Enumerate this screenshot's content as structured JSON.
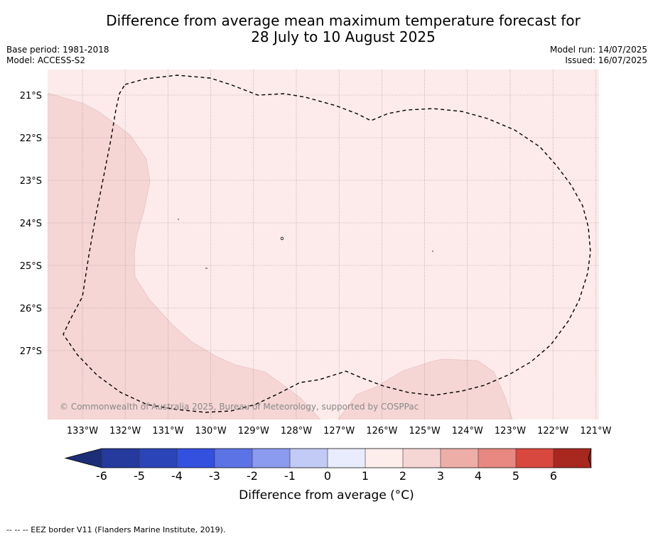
{
  "title": {
    "line1": "Difference from average mean maximum temperature forecast for",
    "line2": "28 July to 10 August 2025"
  },
  "meta": {
    "base_period": "Base period: 1981-2018",
    "model": "Model: ACCESS-S2",
    "model_run": "Model run: 14/07/2025",
    "issued": "Issued: 16/07/2025"
  },
  "map": {
    "lat_labels": [
      "21°S",
      "22°S",
      "23°S",
      "24°S",
      "25°S",
      "26°S",
      "27°S"
    ],
    "lon_labels": [
      "133°W",
      "132°W",
      "131°W",
      "130°W",
      "129°W",
      "128°W",
      "127°W",
      "126°W",
      "125°W",
      "124°W",
      "123°W",
      "122°W",
      "121°W"
    ],
    "copyright": "© Commonwealth of Australia 2025, Bureau of Meteorology, supported by COSPPac",
    "colors": {
      "anomaly_0_1": "#fcebea",
      "anomaly_1_2": "#f6d6d5",
      "eez_border": "#000000"
    }
  },
  "colorbar": {
    "ticks": [
      "-6",
      "-5",
      "-4",
      "-3",
      "-2",
      "-1",
      "0",
      "1",
      "2",
      "3",
      "4",
      "5",
      "6"
    ],
    "colors": [
      "#253a9c",
      "#2b45b9",
      "#3450de",
      "#5c73e6",
      "#8b9bef",
      "#c2caf6",
      "#e9ecfc",
      "#fdedeb",
      "#f6d6d5",
      "#eeaea8",
      "#e88880",
      "#d9483e",
      "#a8281f"
    ],
    "under_color": "#1c2e78",
    "over_color": "#76201b",
    "label": "Difference from average (°C)"
  },
  "footnote": "--  --  -- EEZ border V11 (Flanders Marine Institute, 2019)."
}
